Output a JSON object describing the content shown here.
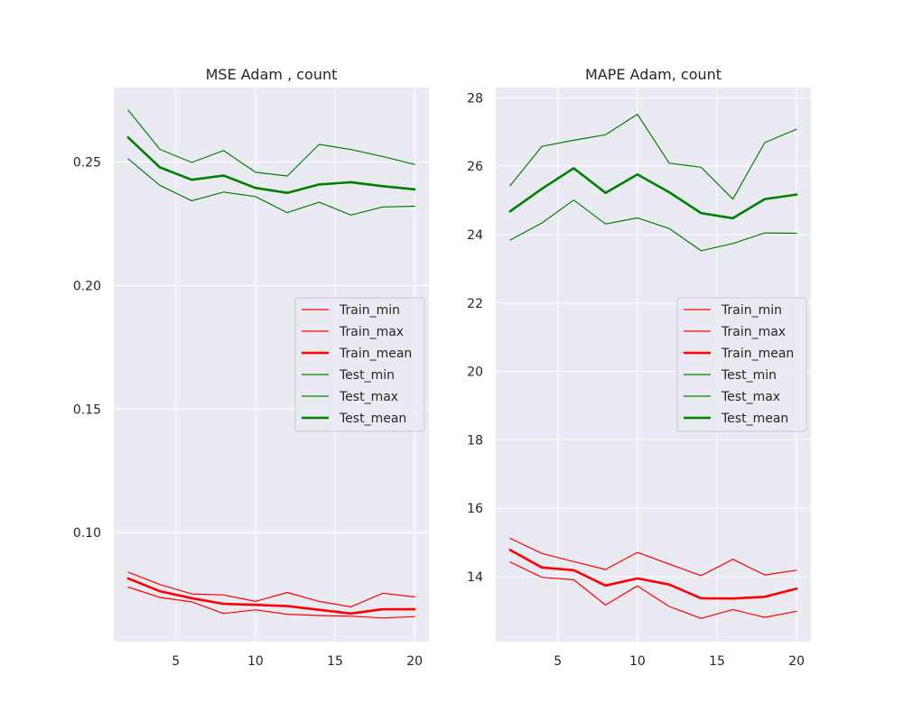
{
  "chart_data": [
    {
      "type": "line",
      "title": "MSE Adam , count",
      "xlabel": "",
      "ylabel": "",
      "xlim": [
        1.1,
        20.9
      ],
      "ylim": [
        0.0559,
        0.2801
      ],
      "xticks": [
        "5",
        "10",
        "15",
        "20"
      ],
      "yticks": [
        "0.10",
        "0.15",
        "0.20",
        "0.25"
      ],
      "grid": true,
      "legend_position": "center-right",
      "x": [
        2,
        4,
        6,
        8,
        10,
        12,
        14,
        16,
        18,
        20
      ],
      "series": [
        {
          "name": "Train_min",
          "color": "#ff0000",
          "width": "thin",
          "values": [
            0.078,
            0.0738,
            0.072,
            0.0673,
            0.0688,
            0.067,
            0.0665,
            0.0662,
            0.0655,
            0.066
          ]
        },
        {
          "name": "Train_max",
          "color": "#ff0000",
          "width": "thin",
          "values": [
            0.084,
            0.079,
            0.0752,
            0.0748,
            0.0722,
            0.0758,
            0.0722,
            0.07,
            0.0755,
            0.074
          ]
        },
        {
          "name": "Train_mean",
          "color": "#ff0000",
          "width": "thick",
          "values": [
            0.0815,
            0.0763,
            0.0735,
            0.0712,
            0.0708,
            0.0703,
            0.0688,
            0.0673,
            0.069,
            0.069
          ]
        },
        {
          "name": "Test_min",
          "color": "#008000",
          "width": "thin",
          "values": [
            0.2513,
            0.2405,
            0.2343,
            0.2378,
            0.236,
            0.2295,
            0.2337,
            0.2285,
            0.2318,
            0.2321
          ]
        },
        {
          "name": "Test_max",
          "color": "#008000",
          "width": "thin",
          "values": [
            0.271,
            0.2551,
            0.2498,
            0.2546,
            0.2458,
            0.2443,
            0.2571,
            0.255,
            0.2522,
            0.249
          ]
        },
        {
          "name": "Test_mean",
          "color": "#008000",
          "width": "thick",
          "values": [
            0.2599,
            0.2478,
            0.2428,
            0.2445,
            0.2395,
            0.2375,
            0.2409,
            0.2418,
            0.2402,
            0.2389
          ]
        }
      ]
    },
    {
      "type": "line",
      "title": "MAPE Adam, count",
      "xlabel": "",
      "ylabel": "",
      "xlim": [
        1.1,
        20.9
      ],
      "ylim": [
        12.1,
        28.3
      ],
      "xticks": [
        "5",
        "10",
        "15",
        "20"
      ],
      "yticks": [
        "14",
        "16",
        "18",
        "20",
        "22",
        "24",
        "26",
        "28"
      ],
      "grid": true,
      "legend_position": "center-right",
      "x": [
        2,
        4,
        6,
        8,
        10,
        12,
        14,
        16,
        18,
        20
      ],
      "series": [
        {
          "name": "Train_min",
          "color": "#ff0000",
          "width": "thin",
          "values": [
            14.43,
            13.98,
            13.91,
            13.17,
            13.73,
            13.13,
            12.78,
            13.04,
            12.81,
            12.99
          ]
        },
        {
          "name": "Train_max",
          "color": "#ff0000",
          "width": "thin",
          "values": [
            15.12,
            14.68,
            14.44,
            14.21,
            14.71,
            14.37,
            14.03,
            14.51,
            14.05,
            14.19
          ]
        },
        {
          "name": "Train_mean",
          "color": "#ff0000",
          "width": "thick",
          "values": [
            14.78,
            14.27,
            14.19,
            13.74,
            13.95,
            13.77,
            13.37,
            13.36,
            13.41,
            13.65
          ]
        },
        {
          "name": "Test_min",
          "color": "#008000",
          "width": "thin",
          "values": [
            23.84,
            24.34,
            25.01,
            24.31,
            24.49,
            24.18,
            23.53,
            23.74,
            24.05,
            24.04
          ]
        },
        {
          "name": "Test_max",
          "color": "#008000",
          "width": "thin",
          "values": [
            25.43,
            26.58,
            26.76,
            26.92,
            27.52,
            26.09,
            25.97,
            25.04,
            26.69,
            27.08
          ]
        },
        {
          "name": "Test_mean",
          "color": "#008000",
          "width": "thick",
          "values": [
            24.68,
            25.34,
            25.94,
            25.22,
            25.76,
            25.24,
            24.63,
            24.48,
            25.04,
            25.17
          ]
        }
      ]
    }
  ],
  "colors": {
    "axes_background": "#eaeaf2",
    "grid": "#ffffff",
    "legend_background": "#eaeaf2",
    "legend_border": "#cccccc",
    "text": "#262626"
  }
}
